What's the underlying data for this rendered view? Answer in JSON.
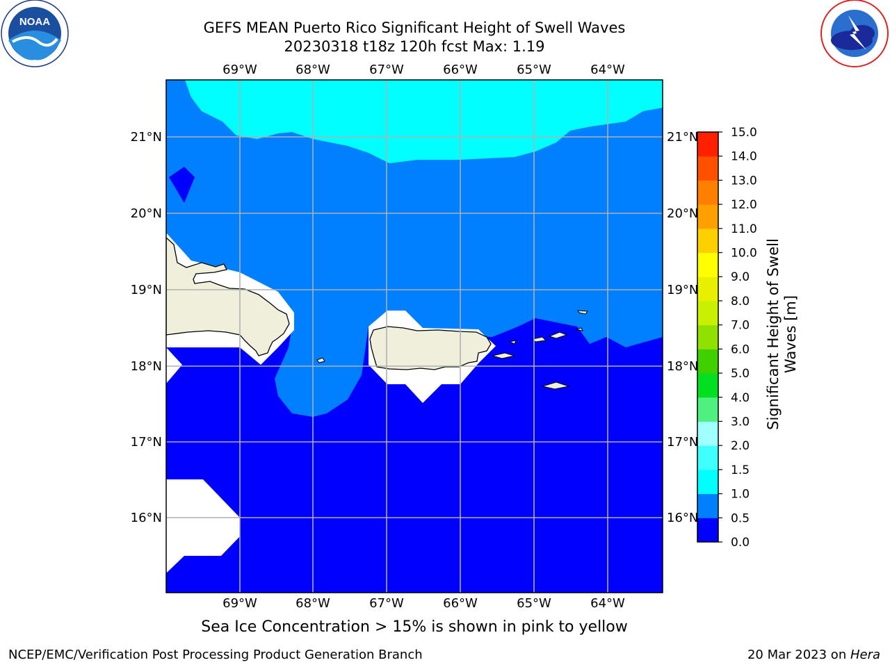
{
  "header": {
    "title_line1": "GEFS MEAN Puerto Rico Significant Height of Swell Waves",
    "title_line2": "20230318 t18z 120h fcst   Max: 1.19"
  },
  "logos": {
    "left": "NOAA",
    "left_ring_text": "NATIONAL OCEANIC AND ATMOSPHERIC ADMINISTRATION · U.S. DEPARTMENT OF COMMERCE",
    "right_ring_text": "NATIONAL WEATHER SERVICE"
  },
  "map": {
    "lon_labels": [
      "69°W",
      "68°W",
      "67°W",
      "66°W",
      "65°W",
      "64°W"
    ],
    "lat_labels": [
      "21°N",
      "20°N",
      "19°N",
      "18°N",
      "17°N",
      "16°N"
    ],
    "bands": [
      {
        "range": "0.0-0.5",
        "color": "#0000ff"
      },
      {
        "range": "0.5-1.0",
        "color": "#0080ff"
      },
      {
        "range": "1.0-1.5",
        "color": "#00ffff"
      }
    ],
    "land_color": "#efefdc",
    "no_data_color": "#ffffff"
  },
  "colorbar": {
    "ticks": [
      "0.0",
      "0.5",
      "1.0",
      "1.5",
      "2.0",
      "3.0",
      "4.0",
      "5.0",
      "6.0",
      "7.0",
      "8.0",
      "9.0",
      "10.0",
      "11.0",
      "12.0",
      "13.0",
      "14.0",
      "15.0"
    ],
    "colors": [
      "#0000ff",
      "#0080ff",
      "#00ffff",
      "#40ffff",
      "#a0ffff",
      "#50f080",
      "#00e020",
      "#40d000",
      "#90e000",
      "#c8f000",
      "#e8f000",
      "#ffff00",
      "#ffd000",
      "#ffa000",
      "#ff8000",
      "#ff5000",
      "#ff2000"
    ],
    "label_line1": "Significant Height of Swell",
    "label_line2": "Waves [m]"
  },
  "caption": "Sea Ice Concentration > 15% is shown in pink to yellow",
  "footer": {
    "left": "NCEP/EMC/Verification Post Processing Product Generation Branch",
    "right_date": "20 Mar 2023 on ",
    "right_system": "Hera"
  }
}
